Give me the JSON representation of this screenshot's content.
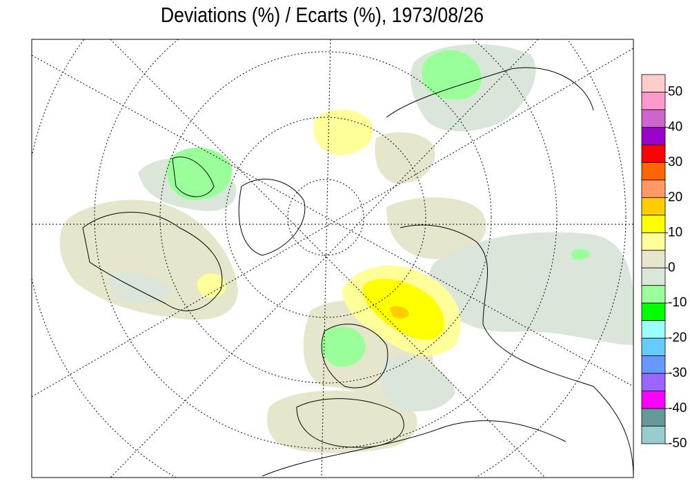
{
  "title": "Deviations (%) / Ecarts (%), 1973/08/26",
  "legend": {
    "lim": [
      -50,
      55
    ],
    "colors": [
      "#ffcccc",
      "#ff99cc",
      "#cc66cc",
      "#9900cc",
      "#ff0000",
      "#ff6600",
      "#ff9966",
      "#ffcc00",
      "#ffff00",
      "#ffff99",
      "#e6e6cc",
      "#d9e6d9",
      "#99ff99",
      "#00ff00",
      "#99ffff",
      "#66ccff",
      "#6699ff",
      "#9966ff",
      "#ff00ff",
      "#669999",
      "#99cccc"
    ],
    "ticks": [
      50,
      40,
      30,
      20,
      10,
      0,
      -10,
      -20,
      -30,
      -40,
      -50
    ]
  }
}
